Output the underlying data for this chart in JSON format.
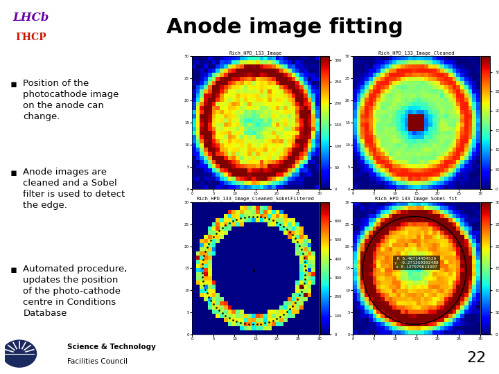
{
  "title": "Anode image fitting",
  "title_bg": "#ffff00",
  "title_color": "#000000",
  "title_fontsize": 22,
  "logo_bg": "#c8dce8",
  "bullet_points": [
    "Position of the\nphotocathode image\non the anode can\nchange.",
    "Anode images are\ncleaned and a Sobel\nfilter is used to detect\nthe edge.",
    "Automated procedure,\nupdates the position\nof the photo-cathode\ncentre in Conditions\nDatabase"
  ],
  "bullet_fontsize": 9.5,
  "slide_bg": "#ffffff",
  "page_number": "22",
  "plot_titles": [
    "Rich_HPD_133_Image",
    "Rich_HPD_133_Image_Cleaned",
    "Rich_HPD_133_Image_Cleaned_SobelFiltered",
    "Rich_HPD_133_Image Sobel fit"
  ],
  "annotation_text": "R 6.46714454526\ny -0.271369392488\nx 0.127979613307"
}
